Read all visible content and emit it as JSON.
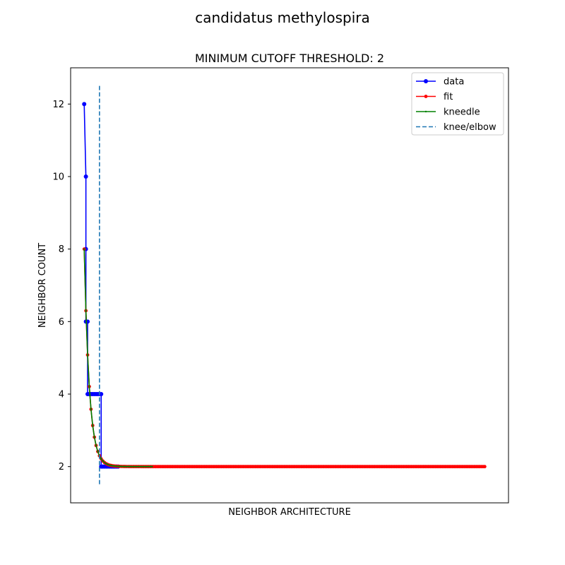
{
  "figure": {
    "suptitle": "candidatus methylospira"
  },
  "chart_data": {
    "type": "line",
    "title": "MINIMUM CUTOFF THRESHOLD: 2",
    "xlabel": "NEIGHBOR ARCHITECTURE",
    "ylabel": "NEIGHBOR COUNT",
    "xlim": [
      -8,
      250
    ],
    "ylim": [
      1.0,
      13.0
    ],
    "xticks_visible": false,
    "yticks": [
      2,
      4,
      6,
      8,
      10,
      12
    ],
    "grid": false,
    "legend": {
      "placement": "top-right",
      "entries": [
        "data",
        "fit",
        "kneedle",
        "knee/elbow"
      ]
    },
    "knee_x": 9,
    "knee_ymin": 1.5,
    "knee_ymax": 12.5,
    "series": [
      {
        "name": "data",
        "color": "#0000ff",
        "step_points": [
          {
            "x": 0,
            "y": 12
          },
          {
            "x": 1,
            "y": 10
          },
          {
            "x": 1,
            "y": 8
          },
          {
            "x": 1,
            "y": 6
          },
          {
            "x": 2,
            "y": 6
          },
          {
            "x": 2,
            "y": 4
          },
          {
            "x": 10,
            "y": 4
          },
          {
            "x": 10,
            "y": 2
          },
          {
            "x": 236,
            "y": 2
          }
        ],
        "marker_points": [
          [
            0,
            12
          ],
          [
            1,
            10
          ],
          [
            1,
            8
          ],
          [
            1,
            6
          ],
          [
            2,
            6
          ],
          [
            2,
            4
          ],
          [
            3,
            4
          ],
          [
            4,
            4
          ],
          [
            5,
            4
          ],
          [
            6,
            4
          ],
          [
            7,
            4
          ],
          [
            8,
            4
          ],
          [
            9,
            4
          ],
          [
            10,
            4
          ],
          [
            10,
            2
          ],
          [
            11,
            2
          ],
          [
            12,
            2
          ],
          [
            13,
            2
          ],
          [
            14,
            2
          ],
          [
            15,
            2
          ],
          [
            16,
            2
          ],
          [
            17,
            2
          ],
          [
            18,
            2
          ],
          [
            19,
            2
          ],
          [
            20,
            2
          ]
        ]
      },
      {
        "name": "fit",
        "color": "#ff0000",
        "model": "y = 2 + 6 * exp(-x / 3)",
        "x_range": [
          0,
          236
        ],
        "n_points": 237
      },
      {
        "name": "kneedle",
        "color": "#008000",
        "model": "y = 2 + 6 * exp(-x / 3)",
        "x_range": [
          0,
          40
        ],
        "n_points": 41
      },
      {
        "name": "knee/elbow",
        "color": "#1f77b4",
        "style": "dashed"
      }
    ]
  }
}
